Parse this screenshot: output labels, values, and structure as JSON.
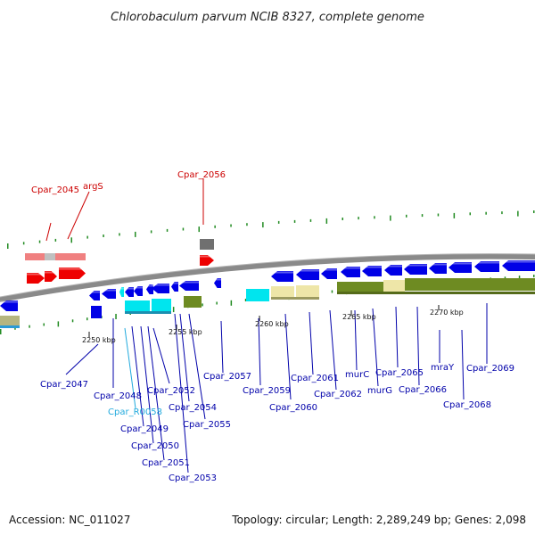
{
  "title": "Chlorobaculum parvum NCIB 8327, complete genome",
  "footer": {
    "accession": "Accession: NC_011027",
    "summary": "Topology: circular; Length: 2,289,249 bp; Genes: 2,098"
  },
  "colors": {
    "backbone": "#8a8a8a",
    "forward_gene": "#0000e6",
    "selected_gene": "#ee0000",
    "rna_gene": "#00e5ee",
    "label_default": "#0000aa",
    "label_selected": "#cc0000",
    "label_rna": "#22aadd",
    "tick_mark": "#228b22"
  },
  "ticks": [
    {
      "label": "2250 kbp"
    },
    {
      "label": "2255 kbp"
    },
    {
      "label": "2260 kbp"
    },
    {
      "label": "2265 kbp"
    },
    {
      "label": "2270 kbp"
    }
  ],
  "genes": [
    {
      "name": "Cpar_2045",
      "type": "selected"
    },
    {
      "name": "argS",
      "type": "selected"
    },
    {
      "name": "Cpar_2056",
      "type": "selected"
    },
    {
      "name": "Cpar_2047",
      "type": "gene"
    },
    {
      "name": "Cpar_2048",
      "type": "gene"
    },
    {
      "name": "Cpar_R0058",
      "type": "rna"
    },
    {
      "name": "Cpar_2049",
      "type": "gene"
    },
    {
      "name": "Cpar_2050",
      "type": "gene"
    },
    {
      "name": "Cpar_2051",
      "type": "gene"
    },
    {
      "name": "Cpar_2052",
      "type": "gene"
    },
    {
      "name": "Cpar_2053",
      "type": "gene"
    },
    {
      "name": "Cpar_2054",
      "type": "gene"
    },
    {
      "name": "Cpar_2055",
      "type": "gene"
    },
    {
      "name": "Cpar_2057",
      "type": "gene"
    },
    {
      "name": "Cpar_2059",
      "type": "gene"
    },
    {
      "name": "Cpar_2060",
      "type": "gene"
    },
    {
      "name": "Cpar_2061",
      "type": "gene"
    },
    {
      "name": "Cpar_2062",
      "type": "gene"
    },
    {
      "name": "murC",
      "type": "gene"
    },
    {
      "name": "murG",
      "type": "gene"
    },
    {
      "name": "Cpar_2065",
      "type": "gene"
    },
    {
      "name": "Cpar_2066",
      "type": "gene"
    },
    {
      "name": "mraY",
      "type": "gene"
    },
    {
      "name": "Cpar_2068",
      "type": "gene"
    },
    {
      "name": "Cpar_2069",
      "type": "gene"
    }
  ]
}
